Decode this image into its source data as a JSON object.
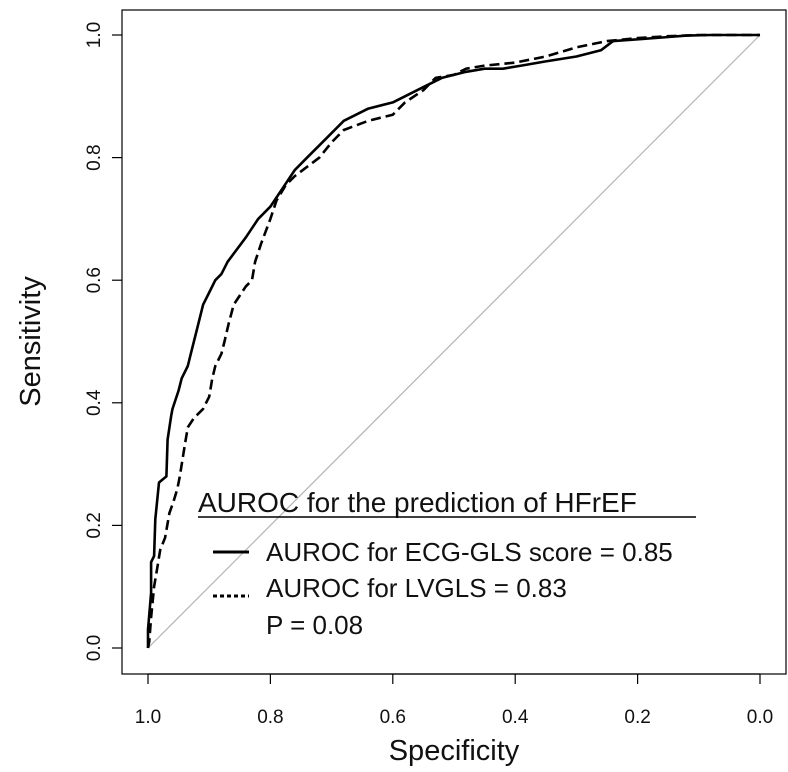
{
  "chart_data": {
    "type": "line",
    "title": "",
    "xlabel": "Specificity",
    "ylabel": "Sensitivity",
    "xlim": [
      1.0,
      0.0
    ],
    "ylim": [
      0.0,
      1.0
    ],
    "x_ticks": [
      {
        "value": 1.0,
        "label": "1.0"
      },
      {
        "value": 0.8,
        "label": "0.8"
      },
      {
        "value": 0.6,
        "label": "0.6"
      },
      {
        "value": 0.4,
        "label": "0.4"
      },
      {
        "value": 0.2,
        "label": "0.2"
      },
      {
        "value": 0.0,
        "label": "0.0"
      }
    ],
    "y_ticks": [
      {
        "value": 0.0,
        "label": "0.0"
      },
      {
        "value": 0.2,
        "label": "0.2"
      },
      {
        "value": 0.4,
        "label": "0.4"
      },
      {
        "value": 0.6,
        "label": "0.6"
      },
      {
        "value": 0.8,
        "label": "0.8"
      },
      {
        "value": 1.0,
        "label": "1.0"
      }
    ],
    "diagonal": {
      "points": [
        [
          1.0,
          0.0
        ],
        [
          0.0,
          1.0
        ]
      ],
      "color": "#b3b3b3"
    },
    "legend": {
      "placement": "bottom-right",
      "title": "AUROC for the prediction of HFrEF",
      "entries": [
        {
          "label": "AUROC for ECG-GLS score = 0.85",
          "style": "solid"
        },
        {
          "label": "AUROC for LVGLS = 0.83",
          "style": "dotted"
        }
      ],
      "note": "P = 0.08"
    },
    "series": [
      {
        "style": "solid",
        "color": "#000000",
        "points": [
          [
            1.0,
            0.0
          ],
          [
            1.0,
            0.03
          ],
          [
            0.995,
            0.09
          ],
          [
            0.995,
            0.14
          ],
          [
            0.99,
            0.15
          ],
          [
            0.988,
            0.21
          ],
          [
            0.982,
            0.27
          ],
          [
            0.97,
            0.28
          ],
          [
            0.968,
            0.34
          ],
          [
            0.962,
            0.38
          ],
          [
            0.96,
            0.39
          ],
          [
            0.95,
            0.42
          ],
          [
            0.945,
            0.44
          ],
          [
            0.935,
            0.46
          ],
          [
            0.93,
            0.48
          ],
          [
            0.92,
            0.52
          ],
          [
            0.91,
            0.56
          ],
          [
            0.9,
            0.58
          ],
          [
            0.89,
            0.6
          ],
          [
            0.88,
            0.61
          ],
          [
            0.87,
            0.63
          ],
          [
            0.855,
            0.65
          ],
          [
            0.84,
            0.67
          ],
          [
            0.82,
            0.7
          ],
          [
            0.8,
            0.72
          ],
          [
            0.78,
            0.75
          ],
          [
            0.76,
            0.78
          ],
          [
            0.74,
            0.8
          ],
          [
            0.71,
            0.83
          ],
          [
            0.68,
            0.86
          ],
          [
            0.64,
            0.88
          ],
          [
            0.6,
            0.89
          ],
          [
            0.58,
            0.9
          ],
          [
            0.55,
            0.915
          ],
          [
            0.52,
            0.93
          ],
          [
            0.48,
            0.94
          ],
          [
            0.45,
            0.945
          ],
          [
            0.42,
            0.945
          ],
          [
            0.39,
            0.95
          ],
          [
            0.35,
            0.957
          ],
          [
            0.3,
            0.965
          ],
          [
            0.26,
            0.975
          ],
          [
            0.24,
            0.99
          ],
          [
            0.2,
            0.993
          ],
          [
            0.16,
            0.996
          ],
          [
            0.12,
            0.999
          ],
          [
            0.08,
            1.0
          ],
          [
            0.0,
            1.0
          ]
        ]
      },
      {
        "style": "dashed",
        "color": "#000000",
        "points": [
          [
            1.0,
            0.0
          ],
          [
            0.998,
            0.01
          ],
          [
            0.995,
            0.05
          ],
          [
            0.99,
            0.1
          ],
          [
            0.985,
            0.13
          ],
          [
            0.98,
            0.16
          ],
          [
            0.972,
            0.18
          ],
          [
            0.965,
            0.22
          ],
          [
            0.958,
            0.24
          ],
          [
            0.952,
            0.26
          ],
          [
            0.948,
            0.28
          ],
          [
            0.94,
            0.33
          ],
          [
            0.935,
            0.36
          ],
          [
            0.925,
            0.375
          ],
          [
            0.91,
            0.39
          ],
          [
            0.9,
            0.41
          ],
          [
            0.895,
            0.44
          ],
          [
            0.89,
            0.46
          ],
          [
            0.88,
            0.48
          ],
          [
            0.875,
            0.5
          ],
          [
            0.868,
            0.53
          ],
          [
            0.86,
            0.56
          ],
          [
            0.85,
            0.575
          ],
          [
            0.84,
            0.59
          ],
          [
            0.83,
            0.6
          ],
          [
            0.825,
            0.63
          ],
          [
            0.815,
            0.66
          ],
          [
            0.8,
            0.7
          ],
          [
            0.79,
            0.73
          ],
          [
            0.775,
            0.755
          ],
          [
            0.76,
            0.77
          ],
          [
            0.74,
            0.785
          ],
          [
            0.72,
            0.8
          ],
          [
            0.7,
            0.825
          ],
          [
            0.68,
            0.845
          ],
          [
            0.64,
            0.86
          ],
          [
            0.6,
            0.87
          ],
          [
            0.58,
            0.89
          ],
          [
            0.55,
            0.91
          ],
          [
            0.53,
            0.93
          ],
          [
            0.5,
            0.935
          ],
          [
            0.48,
            0.945
          ],
          [
            0.45,
            0.95
          ],
          [
            0.4,
            0.955
          ],
          [
            0.35,
            0.965
          ],
          [
            0.3,
            0.98
          ],
          [
            0.25,
            0.99
          ],
          [
            0.2,
            0.995
          ],
          [
            0.15,
            0.998
          ],
          [
            0.1,
            1.0
          ],
          [
            0.0,
            1.0
          ]
        ]
      }
    ]
  }
}
